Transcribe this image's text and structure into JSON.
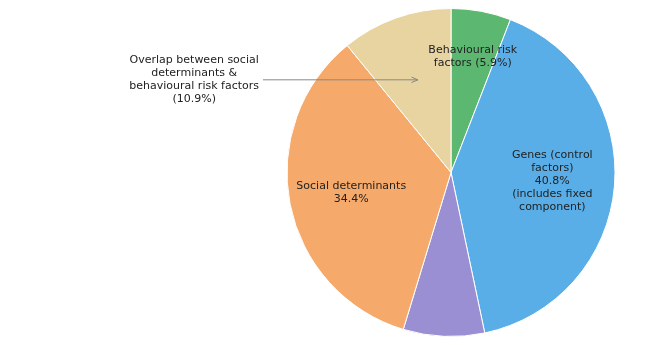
{
  "chart_data": {
    "type": "pie",
    "categories": [
      "Behavioural risk\nfactors (5.9%)",
      "Genes (control\nfactors)\n40.8%\n(includes fixed\ncomponent)",
      null,
      "Social determinants\n34.4%",
      "Overlap between social\ndeterminants &\nbehavioural risk factors\n(10.9%)"
    ],
    "values": [
      5.9,
      40.8,
      8.0,
      34.4,
      10.9
    ],
    "colors": [
      "#5cb870",
      "#5aaee8",
      "#9b8fd4",
      "#f5a96a",
      "#e8d4a0"
    ],
    "legend": false
  }
}
